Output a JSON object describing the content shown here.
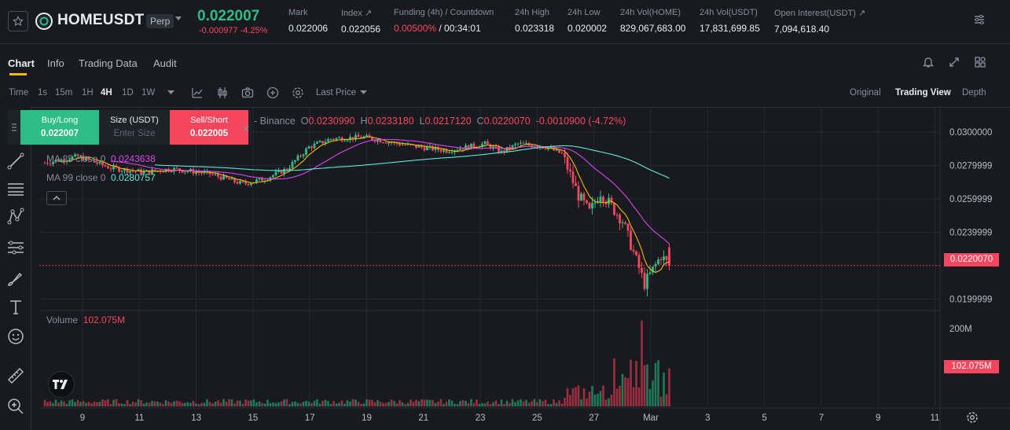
{
  "ticker": {
    "symbol": "HOMEUSDT",
    "badge": "Perp",
    "last_price": "0.022007",
    "change": "-0.000977 -4.25%",
    "stats": [
      {
        "label": "Mark",
        "value": "0.022006"
      },
      {
        "label": "Index ↗",
        "value": "0.022056"
      },
      {
        "label": "Funding (4h) / Countdown",
        "value_red": "0.00500%",
        "value_white": " / 00:34:01"
      },
      {
        "label": "24h High",
        "value": "0.023318"
      },
      {
        "label": "24h Low",
        "value": "0.020002"
      },
      {
        "label": "24h Vol(HOME)",
        "value": "829,067,683.00"
      },
      {
        "label": "24h Vol(USDT)",
        "value": "17,831,699.85"
      },
      {
        "label": "Open Interest(USDT) ↗",
        "value": "7,094,618.40"
      }
    ]
  },
  "tabs": [
    {
      "label": "Chart",
      "active": true
    },
    {
      "label": "Info",
      "active": false
    },
    {
      "label": "Trading Data",
      "active": false
    },
    {
      "label": "Audit",
      "active": false
    }
  ],
  "toolbar": {
    "time_label": "Time",
    "intervals": [
      {
        "label": "1s",
        "active": false
      },
      {
        "label": "15m",
        "active": false
      },
      {
        "label": "1H",
        "active": false
      },
      {
        "label": "4H",
        "active": true
      },
      {
        "label": "1D",
        "active": false
      },
      {
        "label": "1W",
        "active": false
      }
    ],
    "price_type": "Last Price",
    "views": [
      {
        "label": "Original",
        "active": false
      },
      {
        "label": "Trading View",
        "active": true
      },
      {
        "label": "Depth",
        "active": false
      }
    ]
  },
  "order_panel": {
    "buy_label": "Buy/Long",
    "buy_price": "0.022007",
    "size_label": "Size (USDT)",
    "size_placeholder": "Enter Size",
    "sell_label": "Sell/Short",
    "sell_price": "0.022005"
  },
  "legend": {
    "source": "- Binance",
    "o_label": "O",
    "o": "0.0230990",
    "h_label": "H",
    "h": "0.0233180",
    "l_label": "L",
    "l": "0.0217120",
    "c_label": "C",
    "c": "0.0220070",
    "chg": "-0.0010900 (-4.72%)",
    "ma25_label": "MA 25 close 0",
    "ma25": "0.0243638",
    "ma99_label": "MA 99 close 0",
    "ma99": "0.0280757",
    "volume_label": "Volume",
    "volume": "102.075M"
  },
  "price_axis": [
    "0.0300000",
    "0.0279999",
    "0.0259999",
    "0.0239999",
    "0.0199999"
  ],
  "current_price_tag": "0.0220070",
  "volume_axis": [
    "200M"
  ],
  "volume_tag": "102.075M",
  "date_axis": [
    "9",
    "11",
    "13",
    "15",
    "17",
    "19",
    "21",
    "23",
    "25",
    "27",
    "Mar",
    "3",
    "5",
    "7",
    "9",
    "11"
  ],
  "colors": {
    "up": "#2ebd85",
    "down": "#f6465d",
    "ma7": "#f0b90b",
    "ma25": "#d946ef",
    "ma99": "#5eead4",
    "accent": "#f0b90b"
  },
  "chart_data": {
    "type": "candlestick",
    "interval": "4H",
    "ylim": [
      0.0195,
      0.0309
    ],
    "volume_ylim": [
      0,
      200
    ],
    "x_ticks": [
      "9",
      "11",
      "13",
      "15",
      "17",
      "19",
      "21",
      "23",
      "25",
      "27",
      "Mar",
      "3",
      "5",
      "7",
      "9",
      "11"
    ],
    "ma25_last": 0.0243638,
    "ma99_last": 0.0280757,
    "last_ohlc": {
      "o": 0.023099,
      "h": 0.023318,
      "l": 0.021712,
      "c": 0.022007,
      "volume_m": 102.075
    },
    "anchors": [
      {
        "idx": 0,
        "price": 0.02815
      },
      {
        "idx": 12,
        "price": 0.02855
      },
      {
        "idx": 24,
        "price": 0.02785
      },
      {
        "idx": 36,
        "price": 0.0276
      },
      {
        "idx": 46,
        "price": 0.0278
      },
      {
        "idx": 60,
        "price": 0.0275
      },
      {
        "idx": 72,
        "price": 0.0269
      },
      {
        "idx": 80,
        "price": 0.0272
      },
      {
        "idx": 88,
        "price": 0.0278
      },
      {
        "idx": 96,
        "price": 0.0291
      },
      {
        "idx": 104,
        "price": 0.0296
      },
      {
        "idx": 116,
        "price": 0.0297
      },
      {
        "idx": 132,
        "price": 0.0292
      },
      {
        "idx": 146,
        "price": 0.0289
      },
      {
        "idx": 160,
        "price": 0.0293
      },
      {
        "idx": 166,
        "price": 0.0288
      },
      {
        "idx": 172,
        "price": 0.0293
      },
      {
        "idx": 182,
        "price": 0.0291
      },
      {
        "idx": 188,
        "price": 0.0287
      },
      {
        "idx": 194,
        "price": 0.0262
      },
      {
        "idx": 198,
        "price": 0.0252
      },
      {
        "idx": 202,
        "price": 0.0264
      },
      {
        "idx": 210,
        "price": 0.0247
      },
      {
        "idx": 218,
        "price": 0.0209
      },
      {
        "idx": 224,
        "price": 0.0226
      },
      {
        "idx": 227,
        "price": 0.022
      }
    ]
  }
}
